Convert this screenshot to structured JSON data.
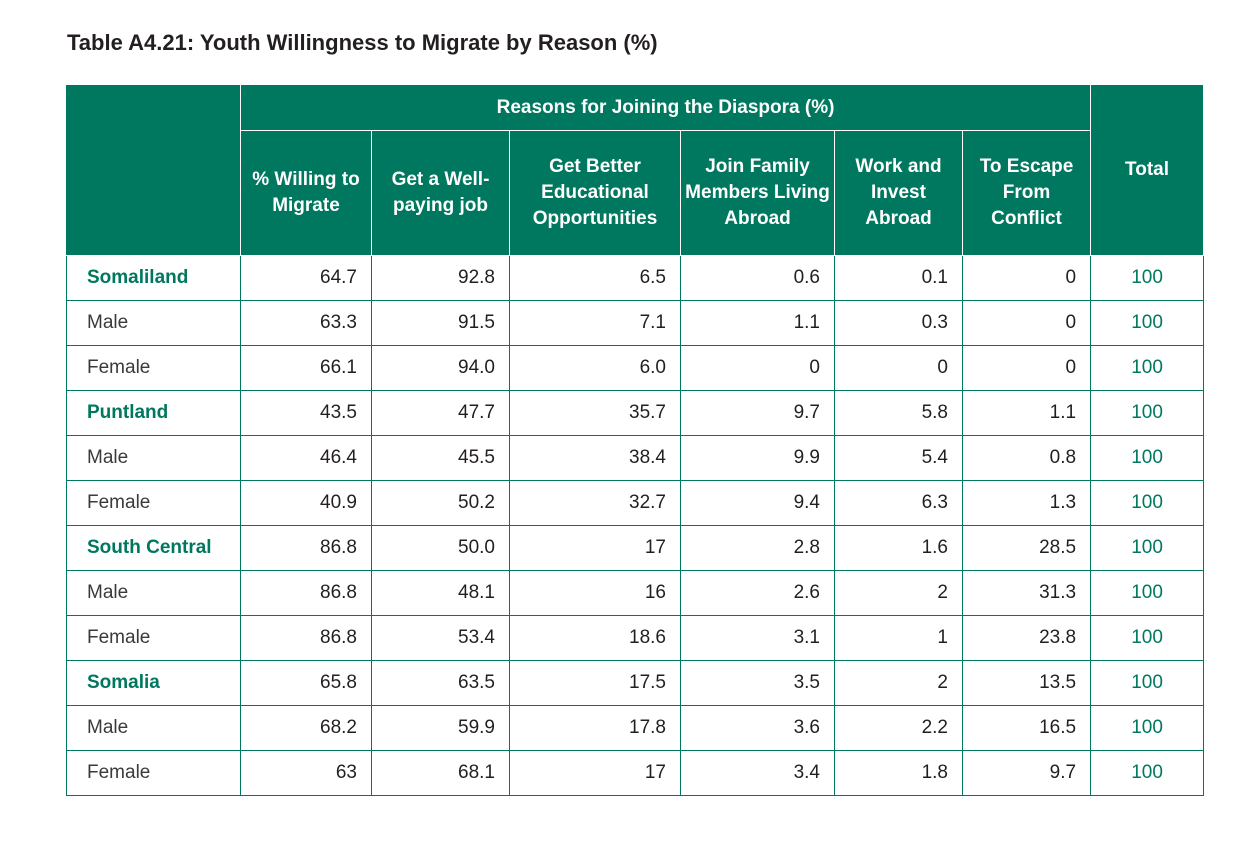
{
  "title": "Table A4.21: Youth Willingness to Migrate by Reason (%)",
  "colors": {
    "header_bg": "#00785f",
    "accent": "#00785f",
    "text": "#231f20"
  },
  "header": {
    "group_label": "Reasons for Joining the Diaspora (%)",
    "total_label": "Total",
    "columns": [
      "% Willing to Migrate",
      "Get a Well-paying job",
      "Get Better Educational Opportunities",
      "Join Family Members Living Abroad",
      "Work and Invest Abroad",
      "To Escape From Conflict"
    ]
  },
  "rows": [
    {
      "label": "Somaliland",
      "kind": "region",
      "values": [
        "64.7",
        "92.8",
        "6.5",
        "0.6",
        "0.1",
        "0"
      ],
      "total": "100"
    },
    {
      "label": "Male",
      "kind": "sub",
      "values": [
        "63.3",
        "91.5",
        "7.1",
        "1.1",
        "0.3",
        "0"
      ],
      "total": "100"
    },
    {
      "label": "Female",
      "kind": "sub",
      "values": [
        "66.1",
        "94.0",
        "6.0",
        "0",
        "0",
        "0"
      ],
      "total": "100"
    },
    {
      "label": "Puntland",
      "kind": "region",
      "values": [
        "43.5",
        "47.7",
        "35.7",
        "9.7",
        "5.8",
        "1.1"
      ],
      "total": "100"
    },
    {
      "label": "Male",
      "kind": "sub",
      "values": [
        "46.4",
        "45.5",
        "38.4",
        "9.9",
        "5.4",
        "0.8"
      ],
      "total": "100"
    },
    {
      "label": "Female",
      "kind": "sub",
      "values": [
        "40.9",
        "50.2",
        "32.7",
        "9.4",
        "6.3",
        "1.3"
      ],
      "total": "100"
    },
    {
      "label": "South Central",
      "kind": "region",
      "values": [
        "86.8",
        "50.0",
        "17",
        "2.8",
        "1.6",
        "28.5"
      ],
      "total": "100"
    },
    {
      "label": "Male",
      "kind": "sub",
      "values": [
        "86.8",
        "48.1",
        "16",
        "2.6",
        "2",
        "31.3"
      ],
      "total": "100"
    },
    {
      "label": "Female",
      "kind": "sub",
      "values": [
        "86.8",
        "53.4",
        "18.6",
        "3.1",
        "1",
        "23.8"
      ],
      "total": "100"
    },
    {
      "label": "Somalia",
      "kind": "region",
      "values": [
        "65.8",
        "63.5",
        "17.5",
        "3.5",
        "2",
        "13.5"
      ],
      "total": "100"
    },
    {
      "label": "Male",
      "kind": "sub",
      "values": [
        "68.2",
        "59.9",
        "17.8",
        "3.6",
        "2.2",
        "16.5"
      ],
      "total": "100"
    },
    {
      "label": "Female",
      "kind": "sub",
      "values": [
        "63",
        "68.1",
        "17",
        "3.4",
        "1.8",
        "9.7"
      ],
      "total": "100"
    }
  ]
}
